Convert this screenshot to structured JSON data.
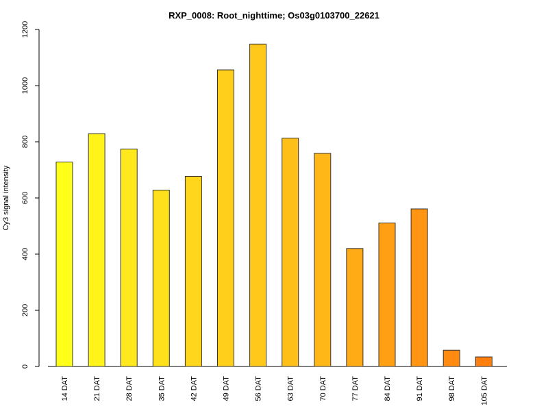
{
  "chart_data": {
    "type": "bar",
    "title": "RXP_0008: Root_nighttime; Os03g0103700_22621",
    "xlabel": "",
    "ylabel": "Cy3 signal intensity",
    "ylim": [
      0,
      1200
    ],
    "yticks": [
      "0",
      "200",
      "400",
      "600",
      "800",
      "1000",
      "1200"
    ],
    "categories": [
      "14 DAT",
      "21 DAT",
      "28 DAT",
      "35 DAT",
      "42 DAT",
      "49 DAT",
      "56 DAT",
      "63 DAT",
      "70 DAT",
      "77 DAT",
      "84 DAT",
      "91 DAT",
      "98 DAT",
      "105 DAT"
    ],
    "values": [
      728,
      829,
      774,
      628,
      677,
      1056,
      1148,
      813,
      759,
      420,
      511,
      561,
      58,
      34
    ],
    "colors": [
      "#FFFF19",
      "#FFF31A",
      "#FFE81B",
      "#FFE01C",
      "#FFD61C",
      "#FFCF1B",
      "#FFC81A",
      "#FFBF19",
      "#FFB718",
      "#FFAB16",
      "#FFA014",
      "#FF9512",
      "#FF8A10",
      "#FF7F0E"
    ],
    "grid": false,
    "legend": "none"
  }
}
